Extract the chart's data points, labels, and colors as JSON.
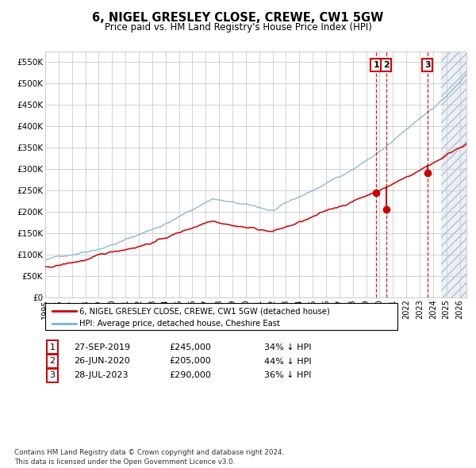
{
  "title": "6, NIGEL GRESLEY CLOSE, CREWE, CW1 5GW",
  "subtitle": "Price paid vs. HM Land Registry's House Price Index (HPI)",
  "hpi_label": "HPI: Average price, detached house, Cheshire East",
  "property_label": "6, NIGEL GRESLEY CLOSE, CREWE, CW1 5GW (detached house)",
  "hpi_color": "#7bafd4",
  "property_color": "#cc0000",
  "sale_dates_decimal": [
    2019.742,
    2020.486,
    2023.572
  ],
  "sale_prices": [
    245000,
    205000,
    290000
  ],
  "sale_labels": [
    "1",
    "2",
    "3"
  ],
  "sale_info": [
    {
      "label": "1",
      "date": "27-SEP-2019",
      "price": "£245,000",
      "pct": "34% ↓ HPI"
    },
    {
      "label": "2",
      "date": "26-JUN-2020",
      "price": "£205,000",
      "pct": "44% ↓ HPI"
    },
    {
      "label": "3",
      "date": "28-JUL-2023",
      "price": "£290,000",
      "pct": "36% ↓ HPI"
    }
  ],
  "xmin": 1995.0,
  "xmax": 2026.5,
  "ymin": 0,
  "ymax": 575000,
  "yticks": [
    0,
    50000,
    100000,
    150000,
    200000,
    250000,
    300000,
    350000,
    400000,
    450000,
    500000,
    550000
  ],
  "ytick_labels": [
    "£0",
    "£50K",
    "£100K",
    "£150K",
    "£200K",
    "£250K",
    "£300K",
    "£350K",
    "£400K",
    "£450K",
    "£500K",
    "£550K"
  ],
  "xticks": [
    1995,
    1996,
    1997,
    1998,
    1999,
    2000,
    2001,
    2002,
    2003,
    2004,
    2005,
    2006,
    2007,
    2008,
    2009,
    2010,
    2011,
    2012,
    2013,
    2014,
    2015,
    2016,
    2017,
    2018,
    2019,
    2020,
    2021,
    2022,
    2023,
    2024,
    2025,
    2026
  ],
  "grid_color": "#cccccc",
  "background_color": "#ffffff",
  "shade_start": 2024.6,
  "shade_end": 2026.5,
  "footnote": "Contains HM Land Registry data © Crown copyright and database right 2024.\nThis data is licensed under the Open Government Licence v3.0."
}
